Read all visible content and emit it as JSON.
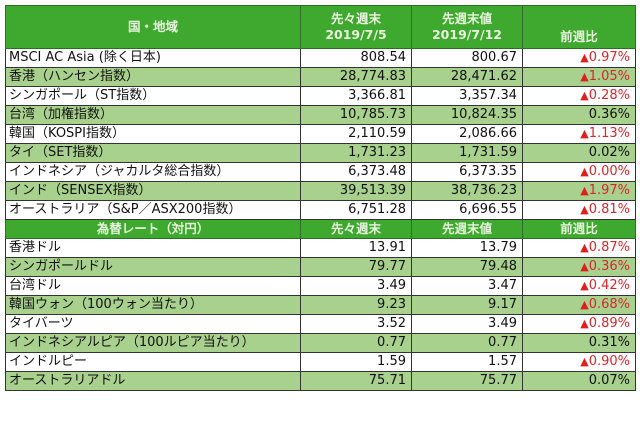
{
  "indices": {
    "header": {
      "region": "国・地域",
      "prev2_label": "先々週末",
      "prev2_date": "2019/7/5",
      "prev_label": "先週末値",
      "prev_date": "2019/7/12",
      "change": "前週比"
    },
    "rows": [
      {
        "name": "MSCI AC Asia (除く日本)",
        "prev2": "808.54",
        "prev": "800.67",
        "change": "0.97%",
        "negative": true
      },
      {
        "name": "香港（ハンセン指数）",
        "prev2": "28,774.83",
        "prev": "28,471.62",
        "change": "1.05%",
        "negative": true
      },
      {
        "name": "シンガポール（ST指数）",
        "prev2": "3,366.81",
        "prev": "3,357.34",
        "change": "0.28%",
        "negative": true
      },
      {
        "name": "台湾（加権指数）",
        "prev2": "10,785.73",
        "prev": "10,824.35",
        "change": "0.36%",
        "negative": false
      },
      {
        "name": "韓国（KOSPI指数）",
        "prev2": "2,110.59",
        "prev": "2,086.66",
        "change": "1.13%",
        "negative": true
      },
      {
        "name": "タイ（SET指数）",
        "prev2": "1,731.23",
        "prev": "1,731.59",
        "change": "0.02%",
        "negative": false
      },
      {
        "name": "インドネシア（ジャカルタ総合指数）",
        "prev2": "6,373.48",
        "prev": "6,373.35",
        "change": "0.00%",
        "negative": true
      },
      {
        "name": "インド（SENSEX指数）",
        "prev2": "39,513.39",
        "prev": "38,736.23",
        "change": "1.97%",
        "negative": true
      },
      {
        "name": "オーストラリア（S&P／ASX200指数）",
        "prev2": "6,751.28",
        "prev": "6,696.55",
        "change": "0.81%",
        "negative": true
      }
    ]
  },
  "fx": {
    "header": {
      "title": "為替レート（対円）",
      "prev2_label": "先々週末",
      "prev_label": "先週末値",
      "change": "前週比"
    },
    "rows": [
      {
        "name": "香港ドル",
        "prev2": "13.91",
        "prev": "13.79",
        "change": "0.87%",
        "negative": true
      },
      {
        "name": "シンガポールドル",
        "prev2": "79.77",
        "prev": "79.48",
        "change": "0.36%",
        "negative": true
      },
      {
        "name": "台湾ドル",
        "prev2": "3.49",
        "prev": "3.47",
        "change": "0.42%",
        "negative": true
      },
      {
        "name": "韓国ウォン（100ウォン当たり）",
        "prev2": "9.23",
        "prev": "9.17",
        "change": "0.68%",
        "negative": true
      },
      {
        "name": "タイバーツ",
        "prev2": "3.52",
        "prev": "3.49",
        "change": "0.89%",
        "negative": true
      },
      {
        "name": "インドネシアルピア（100ルピア当たり）",
        "prev2": "0.77",
        "prev": "0.77",
        "change": "0.31%",
        "negative": false
      },
      {
        "name": "インドルピー",
        "prev2": "1.59",
        "prev": "1.57",
        "change": "0.90%",
        "negative": true
      },
      {
        "name": "オーストラリアドル",
        "prev2": "75.71",
        "prev": "75.77",
        "change": "0.07%",
        "negative": false
      }
    ]
  },
  "symbols": {
    "negative_marker": "▲"
  },
  "colors": {
    "header_green": "#3fa82e",
    "row_green": "#a9d18e",
    "negative_red": "#d9262b"
  }
}
